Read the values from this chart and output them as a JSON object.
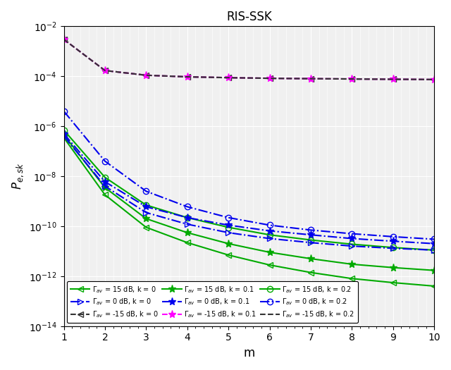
{
  "title": "RIS-SSK",
  "xlabel": "m",
  "ylabel": "$P_{e,sk}$",
  "m": [
    1,
    2,
    3,
    4,
    5,
    6,
    7,
    8,
    9,
    10
  ],
  "series": [
    {
      "label": "$\\Gamma_{av}$ = 15 dB, k = 0",
      "color": "#00AA00",
      "ls": "-",
      "marker": "<",
      "ms": 6,
      "lw": 1.5,
      "mfc": "none",
      "y": [
        3.5e-07,
        1.8e-09,
        9e-11,
        2.2e-11,
        7e-12,
        2.8e-12,
        1.4e-12,
        8e-13,
        5.5e-13,
        4e-13
      ]
    },
    {
      "label": "$\\Gamma_{av}$ = 15 dB, k = 0.1",
      "color": "#00AA00",
      "ls": "-",
      "marker": "*",
      "ms": 8,
      "lw": 1.5,
      "mfc": "#00AA00",
      "y": [
        4.5e-07,
        3.5e-09,
        2e-10,
        5.5e-11,
        2e-11,
        9e-12,
        5e-12,
        3e-12,
        2.2e-12,
        1.7e-12
      ]
    },
    {
      "label": "$\\Gamma_{av}$ = 15 dB, k = 0.2",
      "color": "#00AA00",
      "ls": "-",
      "marker": "o",
      "ms": 6,
      "lw": 1.5,
      "mfc": "none",
      "y": [
        7e-07,
        9e-09,
        7e-10,
        2.2e-10,
        9e-11,
        4.5e-11,
        2.8e-11,
        1.9e-11,
        1.4e-11,
        1.1e-11
      ]
    },
    {
      "label": "$\\Gamma_{av}$ = 0 dB, k = 0",
      "color": "#0000EE",
      "ls": "-.",
      "marker": ">",
      "ms": 6,
      "lw": 1.5,
      "mfc": "none",
      "y": [
        4e-07,
        4e-09,
        3.5e-10,
        1.2e-10,
        5.5e-11,
        3.2e-11,
        2.2e-11,
        1.6e-11,
        1.3e-11,
        1.1e-11
      ]
    },
    {
      "label": "$\\Gamma_{av}$ = 0 dB, k = 0.1",
      "color": "#0000EE",
      "ls": "-.",
      "marker": "*",
      "ms": 8,
      "lw": 1.5,
      "mfc": "#0000EE",
      "y": [
        5e-07,
        6e-09,
        6e-10,
        2.2e-10,
        1.1e-10,
        6.5e-11,
        4.5e-11,
        3.2e-11,
        2.5e-11,
        2e-11
      ]
    },
    {
      "label": "$\\Gamma_{av}$ = 0 dB, k = 0.2",
      "color": "#0000EE",
      "ls": "-.",
      "marker": "o",
      "ms": 6,
      "lw": 1.5,
      "mfc": "none",
      "y": [
        4e-06,
        4e-08,
        2.5e-09,
        6e-10,
        2.2e-10,
        1.1e-10,
        7e-11,
        5e-11,
        3.8e-11,
        3e-11
      ]
    },
    {
      "label": "$\\Gamma_{av}$ = -15 dB, k = 0",
      "color": "#333333",
      "ls": "--",
      "marker": "<",
      "ms": 6,
      "lw": 1.5,
      "mfc": "none",
      "y": [
        0.003,
        0.00017,
        0.00011,
        9.5e-05,
        8.8e-05,
        8.3e-05,
        8e-05,
        7.8e-05,
        7.6e-05,
        7.4e-05
      ]
    },
    {
      "label": "$\\Gamma_{av}$ = -15 dB, k = 0.1",
      "color": "#FF00FF",
      "ls": "--",
      "marker": "*",
      "ms": 8,
      "lw": 1.5,
      "mfc": "#FF00FF",
      "y": [
        0.003,
        0.00017,
        0.00011,
        9.5e-05,
        8.8e-05,
        8.3e-05,
        8e-05,
        7.8e-05,
        7.6e-05,
        7.4e-05
      ]
    },
    {
      "label": "$\\Gamma_{av}$ = -15 dB, k = 0.2",
      "color": "#333333",
      "ls": "--",
      "marker": "",
      "ms": 0,
      "lw": 1.5,
      "mfc": "none",
      "y": [
        0.003,
        0.00017,
        0.00011,
        9.5e-05,
        8.8e-05,
        8.3e-05,
        8e-05,
        7.8e-05,
        7.6e-05,
        7.4e-05
      ]
    }
  ],
  "legend_rows": [
    [
      {
        "label": "$\\Gamma_{av}$ = 15 dB, k = 0",
        "color": "#00AA00",
        "ls": "-",
        "marker": "<",
        "ms": 6,
        "mfc": "none"
      },
      {
        "label": "$\\Gamma_{av}$ = 0 dB, k = 0",
        "color": "#0000EE",
        "ls": "-.",
        "marker": ">",
        "ms": 6,
        "mfc": "none"
      },
      {
        "label": "$\\Gamma_{av}$ = -15 dB, k = 0",
        "color": "#333333",
        "ls": "--",
        "marker": "<",
        "ms": 6,
        "mfc": "none"
      }
    ],
    [
      {
        "label": "$\\Gamma_{av}$ = 15 dB, k = 0.1",
        "color": "#00AA00",
        "ls": "-",
        "marker": "*",
        "ms": 8,
        "mfc": "#00AA00"
      },
      {
        "label": "$\\Gamma_{av}$ = 0 dB, k = 0.1",
        "color": "#0000EE",
        "ls": "-.",
        "marker": "*",
        "ms": 8,
        "mfc": "#0000EE"
      },
      {
        "label": "$\\Gamma_{av}$ = -15 dB, k = 0.1",
        "color": "#FF00FF",
        "ls": "--",
        "marker": "*",
        "ms": 8,
        "mfc": "#FF00FF"
      }
    ],
    [
      {
        "label": "$\\Gamma_{av}$ = 15 dB, k = 0.2",
        "color": "#00AA00",
        "ls": "-",
        "marker": "o",
        "ms": 6,
        "mfc": "none"
      },
      {
        "label": "$\\Gamma_{av}$ = 0 dB, k = 0.2",
        "color": "#0000EE",
        "ls": "-.",
        "marker": "o",
        "ms": 6,
        "mfc": "none"
      },
      {
        "label": "$\\Gamma_{av}$ = -15 dB, k = 0.2",
        "color": "#333333",
        "ls": "--",
        "marker": "",
        "ms": 0,
        "mfc": "none"
      }
    ]
  ]
}
